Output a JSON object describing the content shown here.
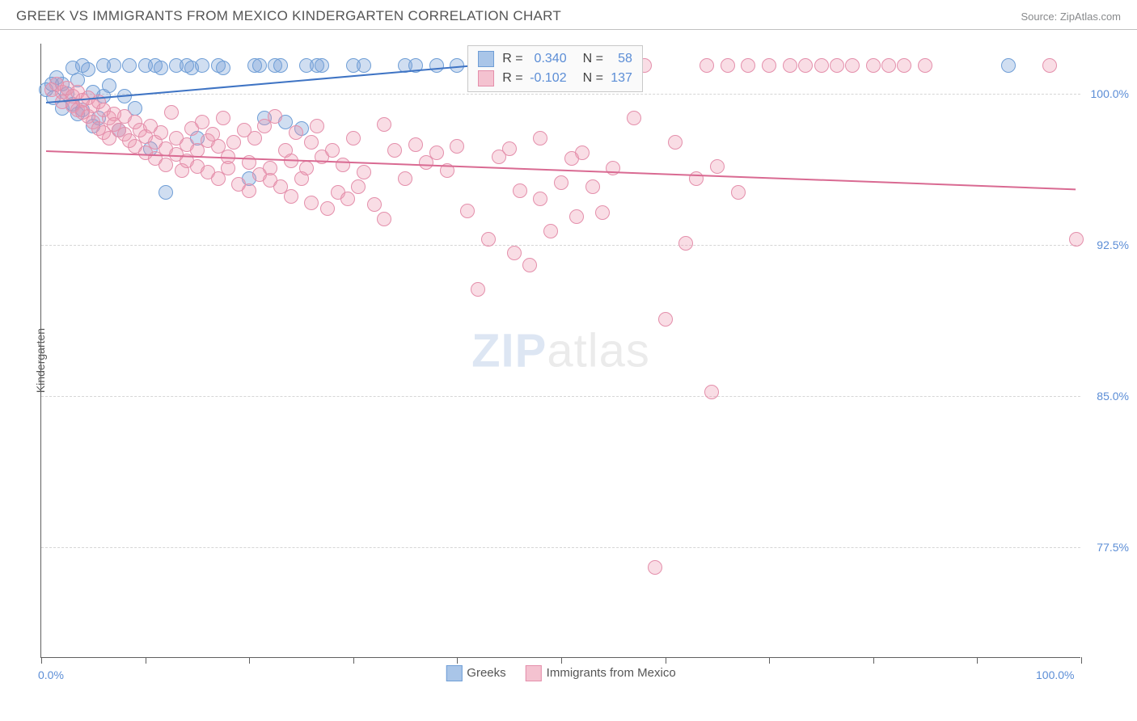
{
  "header": {
    "title": "GREEK VS IMMIGRANTS FROM MEXICO KINDERGARTEN CORRELATION CHART",
    "source": "Source: ZipAtlas.com"
  },
  "watermark": {
    "part1": "ZIP",
    "part2": "atlas"
  },
  "chart": {
    "type": "scatter",
    "ylabel": "Kindergarten",
    "xlim": [
      0,
      100
    ],
    "ylim": [
      72.0,
      102.5
    ],
    "xtick_positions": [
      0,
      10,
      20,
      30,
      40,
      50,
      60,
      70,
      80,
      90,
      100
    ],
    "xtick_labels_shown": {
      "0": "0.0%",
      "100": "100.0%"
    },
    "ytick_positions": [
      77.5,
      85.0,
      92.5,
      100.0
    ],
    "ytick_labels": [
      "77.5%",
      "85.0%",
      "92.5%",
      "100.0%"
    ],
    "background_color": "#ffffff",
    "grid_color": "#d6d6d6",
    "axis_color": "#606060",
    "tick_label_color": "#5b8dd6",
    "label_color": "#555555",
    "label_fontsize": 14,
    "marker_radius": 9,
    "marker_border_width": 1.2,
    "series": [
      {
        "name": "Greeks",
        "fill": "rgba(120,160,215,0.35)",
        "stroke": "#6f9ed6",
        "legend_swatch_fill": "#a9c5e8",
        "legend_swatch_border": "#6f9ed6",
        "r_value": "0.340",
        "n_value": "58",
        "trend": {
          "x1": 0.5,
          "y1": 99.6,
          "x2": 43,
          "y2": 101.5,
          "color": "#3f74c4",
          "width": 2
        },
        "points": [
          [
            0.5,
            100.2
          ],
          [
            1,
            100.5
          ],
          [
            1.2,
            99.8
          ],
          [
            1.5,
            100.8
          ],
          [
            2,
            99.3
          ],
          [
            2,
            100.5
          ],
          [
            2.5,
            100
          ],
          [
            3,
            101.3
          ],
          [
            3,
            99.5
          ],
          [
            3.5,
            100.7
          ],
          [
            3.5,
            99
          ],
          [
            4,
            101.4
          ],
          [
            4,
            99.2
          ],
          [
            4.5,
            101.2
          ],
          [
            5,
            100.1
          ],
          [
            5,
            98.4
          ],
          [
            5.5,
            98.8
          ],
          [
            6,
            101.4
          ],
          [
            6,
            99.9
          ],
          [
            6.5,
            100.4
          ],
          [
            7,
            101.4
          ],
          [
            7.5,
            98.2
          ],
          [
            8,
            99.9
          ],
          [
            8.5,
            101.4
          ],
          [
            9,
            99.3
          ],
          [
            10,
            101.4
          ],
          [
            10.5,
            97.3
          ],
          [
            11,
            101.4
          ],
          [
            11.5,
            101.3
          ],
          [
            12,
            95.1
          ],
          [
            13,
            101.4
          ],
          [
            14,
            101.4
          ],
          [
            14.5,
            101.3
          ],
          [
            15,
            97.8
          ],
          [
            15.5,
            101.4
          ],
          [
            17,
            101.4
          ],
          [
            17.5,
            101.3
          ],
          [
            20,
            95.8
          ],
          [
            20.5,
            101.4
          ],
          [
            21,
            101.4
          ],
          [
            21.5,
            98.8
          ],
          [
            22.5,
            101.4
          ],
          [
            23,
            101.4
          ],
          [
            23.5,
            98.6
          ],
          [
            25,
            98.3
          ],
          [
            25.5,
            101.4
          ],
          [
            26.5,
            101.4
          ],
          [
            27,
            101.4
          ],
          [
            30,
            101.4
          ],
          [
            31,
            101.4
          ],
          [
            35,
            101.4
          ],
          [
            36,
            101.4
          ],
          [
            38,
            101.4
          ],
          [
            40,
            101.4
          ],
          [
            93,
            101.4
          ]
        ]
      },
      {
        "name": "Immigrants from Mexico",
        "fill": "rgba(235,150,175,0.32)",
        "stroke": "#e48fab",
        "legend_swatch_fill": "#f4c2d0",
        "legend_swatch_border": "#e48fab",
        "r_value": "-0.102",
        "n_value": "137",
        "trend": {
          "x1": 0.5,
          "y1": 97.2,
          "x2": 99.5,
          "y2": 95.3,
          "color": "#d96a92",
          "width": 2
        },
        "points": [
          [
            1,
            100.2
          ],
          [
            1.5,
            100.5
          ],
          [
            2,
            100.1
          ],
          [
            2,
            99.6
          ],
          [
            2.5,
            100.3
          ],
          [
            3,
            99.9
          ],
          [
            3,
            99.4
          ],
          [
            3.5,
            100.1
          ],
          [
            3.5,
            99.2
          ],
          [
            4,
            99.7
          ],
          [
            4,
            99.1
          ],
          [
            4.5,
            99.8
          ],
          [
            4.5,
            98.9
          ],
          [
            5,
            99.4
          ],
          [
            5,
            98.6
          ],
          [
            5.5,
            99.6
          ],
          [
            5.5,
            98.3
          ],
          [
            6,
            99.2
          ],
          [
            6,
            98.1
          ],
          [
            6.5,
            98.8
          ],
          [
            6.5,
            97.8
          ],
          [
            7,
            99
          ],
          [
            7,
            98.5
          ],
          [
            7.5,
            98.2
          ],
          [
            8,
            98.9
          ],
          [
            8,
            98
          ],
          [
            8.5,
            97.7
          ],
          [
            9,
            98.6
          ],
          [
            9,
            97.4
          ],
          [
            9.5,
            98.2
          ],
          [
            10,
            97.9
          ],
          [
            10,
            97.1
          ],
          [
            10.5,
            98.4
          ],
          [
            11,
            97.6
          ],
          [
            11,
            96.8
          ],
          [
            11.5,
            98.1
          ],
          [
            12,
            97.3
          ],
          [
            12,
            96.5
          ],
          [
            12.5,
            99.1
          ],
          [
            13,
            97.8
          ],
          [
            13,
            97
          ],
          [
            13.5,
            96.2
          ],
          [
            14,
            97.5
          ],
          [
            14,
            96.7
          ],
          [
            14.5,
            98.3
          ],
          [
            15,
            97.2
          ],
          [
            15,
            96.4
          ],
          [
            15.5,
            98.6
          ],
          [
            16,
            97.7
          ],
          [
            16,
            96.1
          ],
          [
            16.5,
            98
          ],
          [
            17,
            97.4
          ],
          [
            17,
            95.8
          ],
          [
            17.5,
            98.8
          ],
          [
            18,
            96.9
          ],
          [
            18,
            96.3
          ],
          [
            18.5,
            97.6
          ],
          [
            19,
            95.5
          ],
          [
            19.5,
            98.2
          ],
          [
            20,
            96.6
          ],
          [
            20,
            95.2
          ],
          [
            20.5,
            97.8
          ],
          [
            21,
            96
          ],
          [
            21.5,
            98.4
          ],
          [
            22,
            96.3
          ],
          [
            22,
            95.7
          ],
          [
            22.5,
            98.9
          ],
          [
            23,
            95.4
          ],
          [
            23.5,
            97.2
          ],
          [
            24,
            96.7
          ],
          [
            24,
            94.9
          ],
          [
            24.5,
            98.1
          ],
          [
            25,
            95.8
          ],
          [
            25.5,
            96.3
          ],
          [
            26,
            97.6
          ],
          [
            26,
            94.6
          ],
          [
            26.5,
            98.4
          ],
          [
            27,
            96.9
          ],
          [
            27.5,
            94.3
          ],
          [
            28,
            97.2
          ],
          [
            28.5,
            95.1
          ],
          [
            29,
            96.5
          ],
          [
            29.5,
            94.8
          ],
          [
            30,
            97.8
          ],
          [
            30.5,
            95.4
          ],
          [
            31,
            96.1
          ],
          [
            32,
            94.5
          ],
          [
            33,
            98.5
          ],
          [
            33,
            93.8
          ],
          [
            34,
            97.2
          ],
          [
            35,
            95.8
          ],
          [
            36,
            97.5
          ],
          [
            37,
            96.6
          ],
          [
            38,
            97.1
          ],
          [
            39,
            96.2
          ],
          [
            40,
            97.4
          ],
          [
            41,
            94.2
          ],
          [
            42,
            90.3
          ],
          [
            43,
            92.8
          ],
          [
            44,
            96.9
          ],
          [
            45,
            97.3
          ],
          [
            45.5,
            92.1
          ],
          [
            46,
            95.2
          ],
          [
            47,
            91.5
          ],
          [
            48,
            97.8
          ],
          [
            48,
            94.8
          ],
          [
            49,
            93.2
          ],
          [
            50,
            95.6
          ],
          [
            51,
            96.8
          ],
          [
            51.5,
            93.9
          ],
          [
            52,
            97.1
          ],
          [
            53,
            95.4
          ],
          [
            54,
            94.1
          ],
          [
            55,
            96.3
          ],
          [
            55.5,
            101.4
          ],
          [
            56,
            101.4
          ],
          [
            57,
            98.8
          ],
          [
            58,
            101.4
          ],
          [
            59,
            76.5
          ],
          [
            60,
            88.8
          ],
          [
            61,
            97.6
          ],
          [
            62,
            92.6
          ],
          [
            63,
            95.8
          ],
          [
            64,
            101.4
          ],
          [
            64.5,
            85.2
          ],
          [
            65,
            96.4
          ],
          [
            66,
            101.4
          ],
          [
            67,
            95.1
          ],
          [
            68,
            101.4
          ],
          [
            70,
            101.4
          ],
          [
            72,
            101.4
          ],
          [
            73.5,
            101.4
          ],
          [
            75,
            101.4
          ],
          [
            76.5,
            101.4
          ],
          [
            78,
            101.4
          ],
          [
            80,
            101.4
          ],
          [
            81.5,
            101.4
          ],
          [
            83,
            101.4
          ],
          [
            85,
            101.4
          ],
          [
            97,
            101.4
          ],
          [
            99.5,
            92.8
          ]
        ]
      }
    ],
    "bottom_legend": [
      {
        "label": "Greeks",
        "swatch_fill": "#a9c5e8",
        "swatch_border": "#6f9ed6"
      },
      {
        "label": "Immigrants from Mexico",
        "swatch_fill": "#f4c2d0",
        "swatch_border": "#e48fab"
      }
    ],
    "correlation_legend": {
      "r_label": "R =",
      "n_label": "N ="
    }
  }
}
